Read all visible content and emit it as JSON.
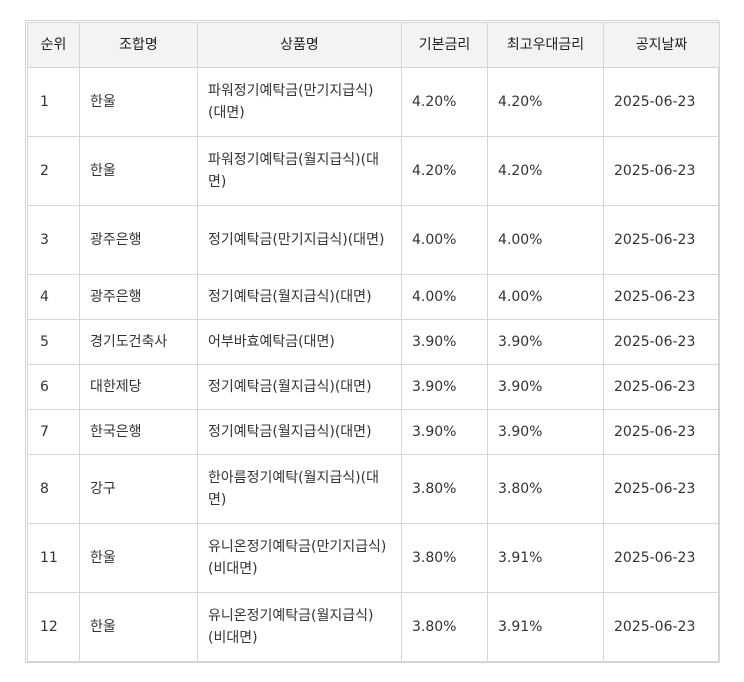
{
  "table": {
    "headers": [
      "순위",
      "조합명",
      "상품명",
      "기본금리",
      "최고우대금리",
      "공지날짜"
    ],
    "rows": [
      {
        "rank": "1",
        "union": "한울",
        "product": "파워정기예탁금(만기지급식)(대면)",
        "base": "4.20%",
        "max": "4.20%",
        "date": "2025-06-23"
      },
      {
        "rank": "2",
        "union": "한울",
        "product": "파워정기예탁금(월지급식)(대면)",
        "base": "4.20%",
        "max": "4.20%",
        "date": "2025-06-23"
      },
      {
        "rank": "3",
        "union": "광주은행",
        "product": "정기예탁금(만기지급식)(대면)",
        "base": "4.00%",
        "max": "4.00%",
        "date": "2025-06-23"
      },
      {
        "rank": "4",
        "union": "광주은행",
        "product": "정기예탁금(월지급식)(대면)",
        "base": "4.00%",
        "max": "4.00%",
        "date": "2025-06-23"
      },
      {
        "rank": "5",
        "union": "경기도건축사",
        "product": "어부바효예탁금(대면)",
        "base": "3.90%",
        "max": "3.90%",
        "date": "2025-06-23"
      },
      {
        "rank": "6",
        "union": "대한제당",
        "product": "정기예탁금(월지급식)(대면)",
        "base": "3.90%",
        "max": "3.90%",
        "date": "2025-06-23"
      },
      {
        "rank": "7",
        "union": "한국은행",
        "product": "정기예탁금(월지급식)(대면)",
        "base": "3.90%",
        "max": "3.90%",
        "date": "2025-06-23"
      },
      {
        "rank": "8",
        "union": "강구",
        "product": "한아름정기예탁(월지급식)(대면)",
        "base": "3.80%",
        "max": "3.80%",
        "date": "2025-06-23"
      },
      {
        "rank": "11",
        "union": "한울",
        "product": "유니온정기예탁금(만기지급식)(비대면)",
        "base": "3.80%",
        "max": "3.91%",
        "date": "2025-06-23"
      },
      {
        "rank": "12",
        "union": "한울",
        "product": "유니온정기예탁금(월지급식)(비대면)",
        "base": "3.80%",
        "max": "3.91%",
        "date": "2025-06-23"
      }
    ]
  }
}
